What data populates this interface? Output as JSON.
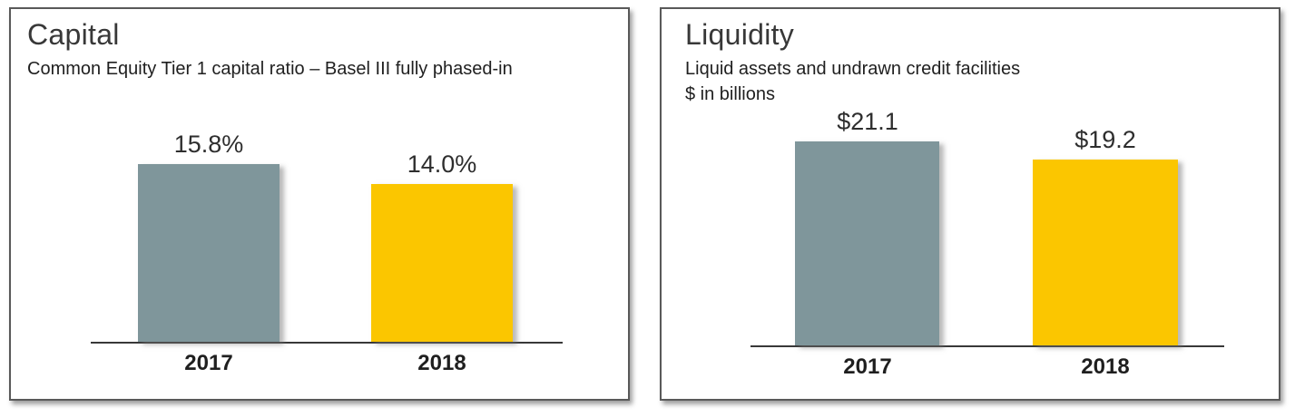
{
  "colors": {
    "bar_2017_gray": "#7F969B",
    "bar_2018_yellow": "#FBC600",
    "axis_line": "#383838",
    "panel_border": "#595959",
    "title_text": "#383838",
    "label_text": "#2E2E2E"
  },
  "chart_data": [
    {
      "type": "bar",
      "title": "Capital",
      "subtitle_lines": [
        "Common Equity Tier 1 capital ratio – Basel III fully phased-in"
      ],
      "categories": [
        "2017",
        "2018"
      ],
      "values": [
        15.8,
        14.0
      ],
      "value_labels": [
        "15.8%",
        "14.0%"
      ],
      "unit": "% capital ratio",
      "series_colors": [
        "#7F969B",
        "#FBC600"
      ],
      "ylim": [
        0,
        17
      ],
      "grid": false,
      "legend": "none"
    },
    {
      "type": "bar",
      "title": "Liquidity",
      "subtitle_lines": [
        "Liquid assets and undrawn credit facilities",
        "$ in billions"
      ],
      "categories": [
        "2017",
        "2018"
      ],
      "values": [
        21.1,
        19.2
      ],
      "value_labels": [
        "$21.1",
        "$19.2"
      ],
      "unit": "$ in billions",
      "series_colors": [
        "#7F969B",
        "#FBC600"
      ],
      "ylim": [
        0,
        24
      ],
      "grid": false,
      "legend": "none"
    }
  ]
}
